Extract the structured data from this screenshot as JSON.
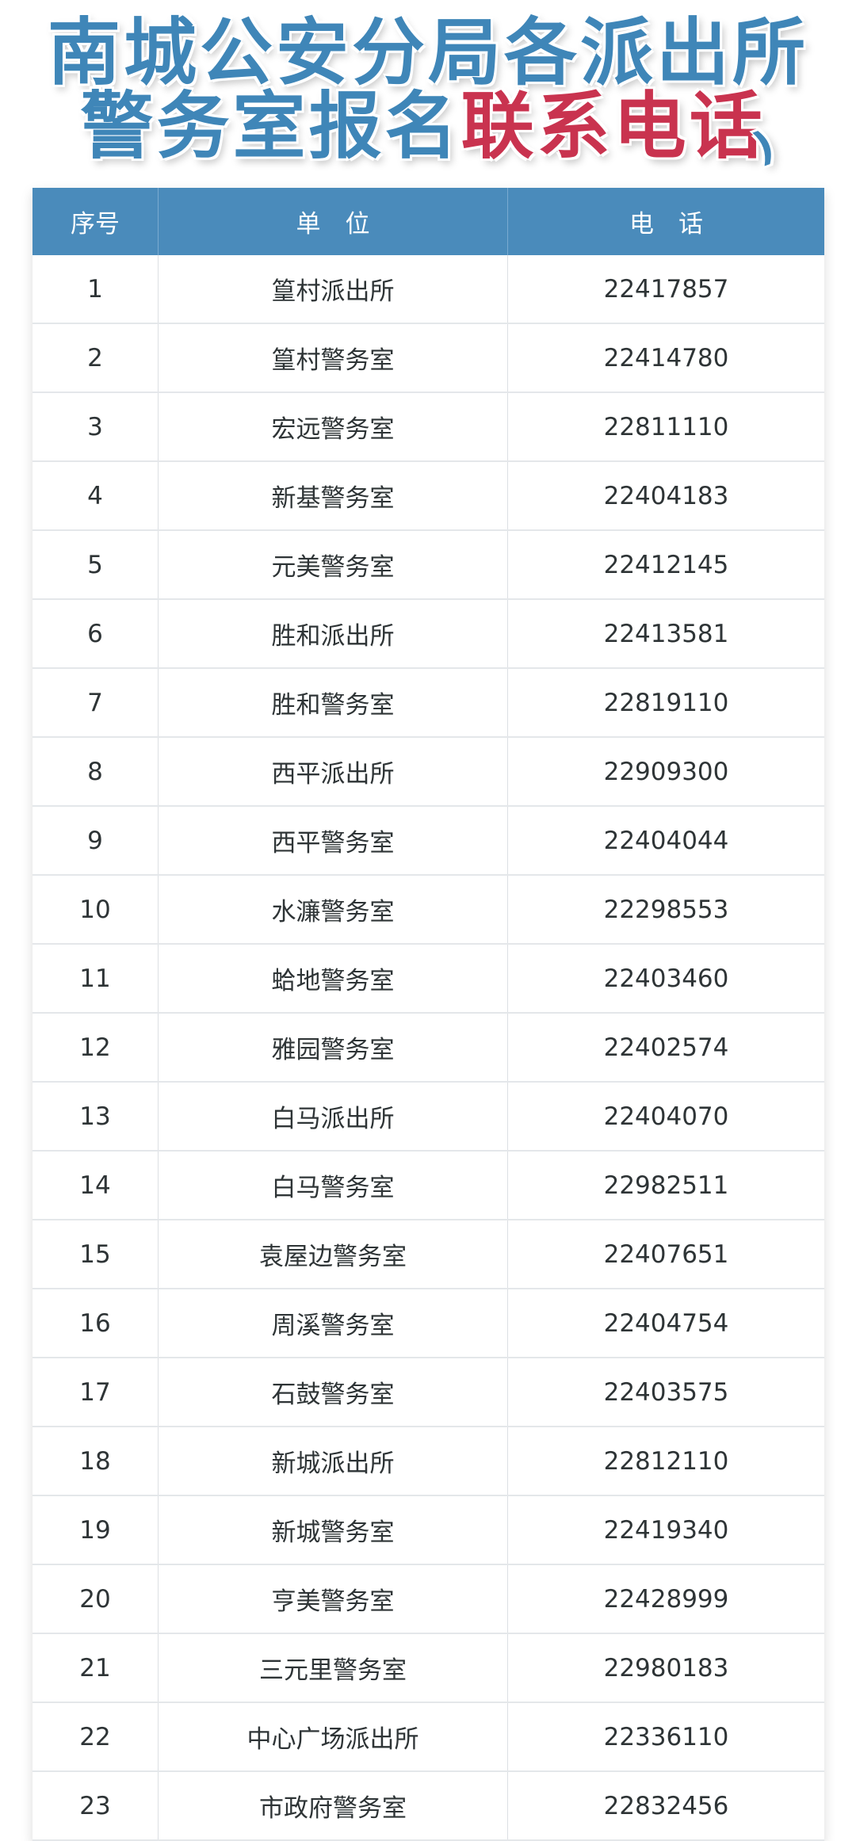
{
  "title": {
    "line1": "南城公安分局各派出所",
    "line2_blue": "警务室报名",
    "line2_red": "联系电话"
  },
  "colors": {
    "title_blue": "#3f86b8",
    "title_red": "#c9334f",
    "header_bg": "#4a8bbb"
  },
  "table": {
    "headers": [
      "序号",
      "单　位",
      "电　话"
    ],
    "rows": [
      [
        "1",
        "篁村派出所",
        "22417857"
      ],
      [
        "2",
        "篁村警务室",
        "22414780"
      ],
      [
        "3",
        "宏远警务室",
        "22811110"
      ],
      [
        "4",
        "新基警务室",
        "22404183"
      ],
      [
        "5",
        "元美警务室",
        "22412145"
      ],
      [
        "6",
        "胜和派出所",
        "22413581"
      ],
      [
        "7",
        "胜和警务室",
        "22819110"
      ],
      [
        "8",
        "西平派出所",
        "22909300"
      ],
      [
        "9",
        "西平警务室",
        "22404044"
      ],
      [
        "10",
        "水濂警务室",
        "22298553"
      ],
      [
        "11",
        "蛤地警务室",
        "22403460"
      ],
      [
        "12",
        "雅园警务室",
        "22402574"
      ],
      [
        "13",
        "白马派出所",
        "22404070"
      ],
      [
        "14",
        "白马警务室",
        "22982511"
      ],
      [
        "15",
        "袁屋边警务室",
        "22407651"
      ],
      [
        "16",
        "周溪警务室",
        "22404754"
      ],
      [
        "17",
        "石鼓警务室",
        "22403575"
      ],
      [
        "18",
        "新城派出所",
        "22812110"
      ],
      [
        "19",
        "新城警务室",
        "22419340"
      ],
      [
        "20",
        "亨美警务室",
        "22428999"
      ],
      [
        "21",
        "三元里警务室",
        "22980183"
      ],
      [
        "22",
        "中心广场派出所",
        "22336110"
      ],
      [
        "23",
        "市政府警务室",
        "22832456"
      ]
    ]
  }
}
